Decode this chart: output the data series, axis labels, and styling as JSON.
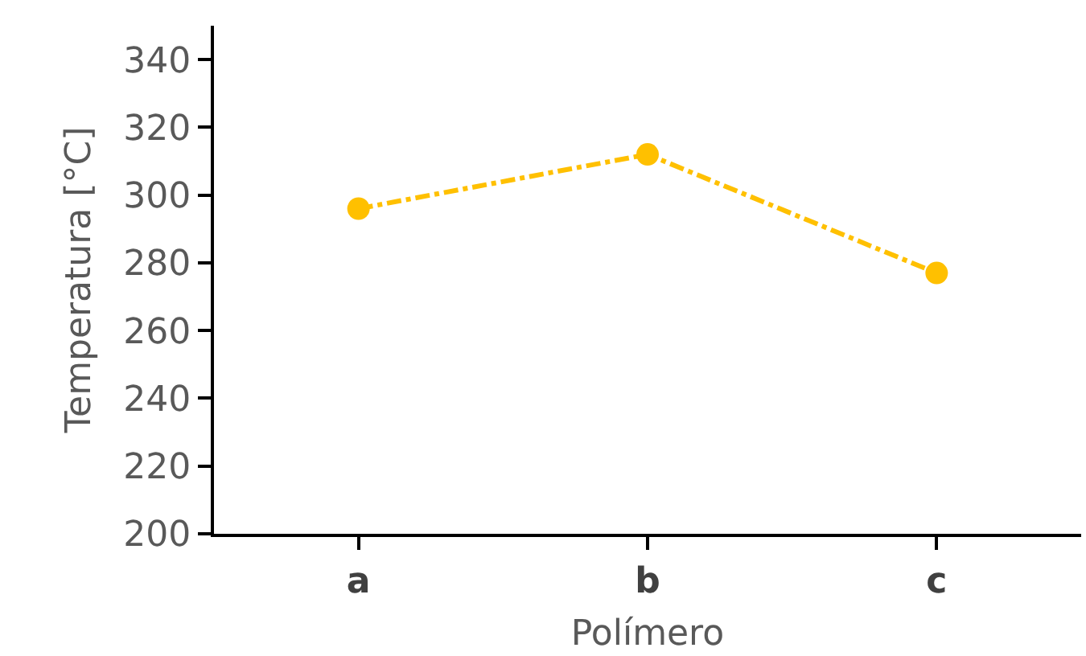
{
  "chart_data": {
    "type": "line",
    "xlabel": "Polímero",
    "ylabel": "Temperatura [°C]",
    "categories": [
      "a",
      "b",
      "c"
    ],
    "series": [
      {
        "color": "#ffc000",
        "values": [
          296,
          312,
          277
        ]
      }
    ],
    "ylim": [
      200,
      350
    ],
    "yticks": [
      200,
      220,
      240,
      260,
      280,
      300,
      320,
      340
    ],
    "legend": false,
    "marker": "circle",
    "line_style": "dashdot"
  }
}
